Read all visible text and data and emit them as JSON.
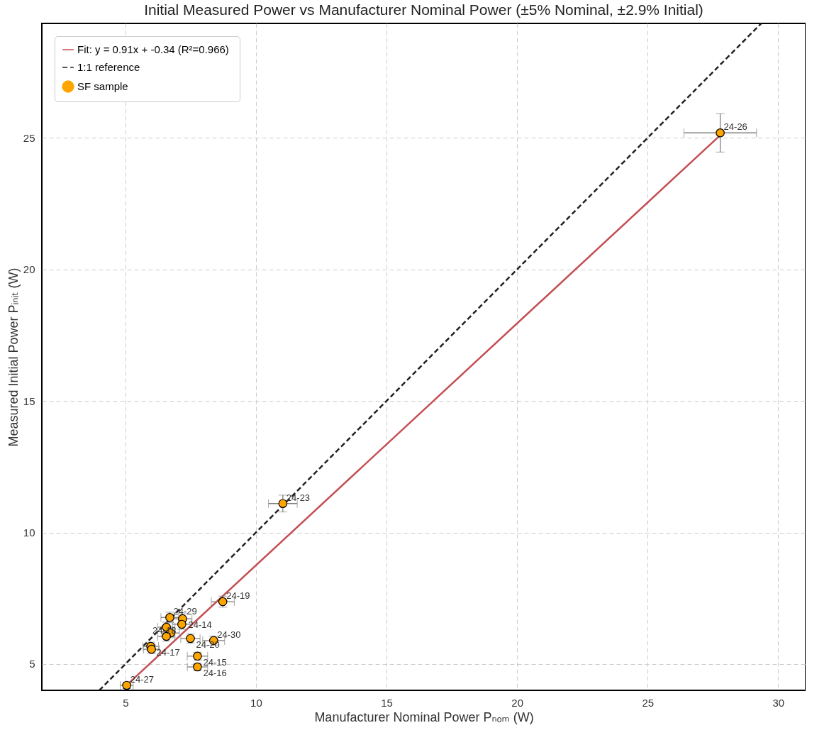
{
  "chart_data": {
    "type": "scatter",
    "title": "Initial Measured Power vs Manufacturer Nominal Power (±5% Nominal, ±2.9% Initial)",
    "xlabel": "Manufacturer Nominal Power Pₙₒₘ (W)",
    "ylabel": "Measured Initial Power Pᵢₙᵢₜ (W)",
    "xlim": [
      1.8,
      31.05
    ],
    "ylim": [
      4.0,
      29.35
    ],
    "xticks": [
      5,
      10,
      15,
      20,
      25,
      30
    ],
    "yticks": [
      5,
      10,
      15,
      20,
      25
    ],
    "grid": true,
    "legend": "top left",
    "series": [
      {
        "name": "Fit: y = 0.91x + -0.34  (R²=0.966)",
        "type": "line",
        "color": "#c44e52",
        "line_style": "solid",
        "x": [
          5.05,
          27.78
        ],
        "values": [
          4.2,
          25.1
        ]
      },
      {
        "name": "1:1 reference",
        "type": "line",
        "color": "#222222",
        "line_style": "dashed",
        "x": [
          4.0,
          29.35
        ],
        "values": [
          4.0,
          29.35
        ]
      },
      {
        "name": "SF sample",
        "color": "#ffa500",
        "marker": "circle",
        "x": [
          27.78,
          11.03,
          8.73,
          8.38,
          7.49,
          7.76,
          7.76,
          5.05,
          6.7,
          7.19,
          7.16,
          6.57,
          6.73,
          6.57,
          5.97,
          6.0
        ],
        "values": [
          25.19,
          11.1,
          7.37,
          5.89,
          5.97,
          5.3,
          4.89,
          4.19,
          6.77,
          6.72,
          6.51,
          6.4,
          6.18,
          6.05,
          5.67,
          5.56
        ],
        "xerrors": [
          1.39,
          0.55,
          0.44,
          0.42,
          0.37,
          0.39,
          0.39,
          0.25,
          0.34,
          0.36,
          0.36,
          0.33,
          0.34,
          0.33,
          0.3,
          0.3
        ],
        "errors": [
          0.73,
          0.32,
          0.21,
          0.17,
          0.17,
          0.15,
          0.14,
          0.12,
          0.2,
          0.19,
          0.19,
          0.19,
          0.18,
          0.18,
          0.16,
          0.16
        ]
      }
    ],
    "annotations": [
      {
        "text": "24-26",
        "x": 27.78,
        "y": 25.19
      },
      {
        "text": "24-23",
        "x": 11.03,
        "y": 11.1
      },
      {
        "text": "24-19",
        "x": 8.73,
        "y": 7.37
      },
      {
        "text": "24-30",
        "x": 8.38,
        "y": 5.89
      },
      {
        "text": "24-20",
        "x": 7.49,
        "y": 5.97
      },
      {
        "text": "24-15",
        "x": 7.76,
        "y": 5.3
      },
      {
        "text": "24-16",
        "x": 7.76,
        "y": 4.89
      },
      {
        "text": "24-27",
        "x": 5.05,
        "y": 4.19
      },
      {
        "text": "24-29",
        "x": 6.7,
        "y": 6.77
      },
      {
        "text": "24-14",
        "x": 7.19,
        "y": 6.72
      },
      {
        "text": "24-18",
        "x": 7.16,
        "y": 6.51
      },
      {
        "text": "24-17",
        "x": 5.97,
        "y": 5.67
      }
    ]
  }
}
